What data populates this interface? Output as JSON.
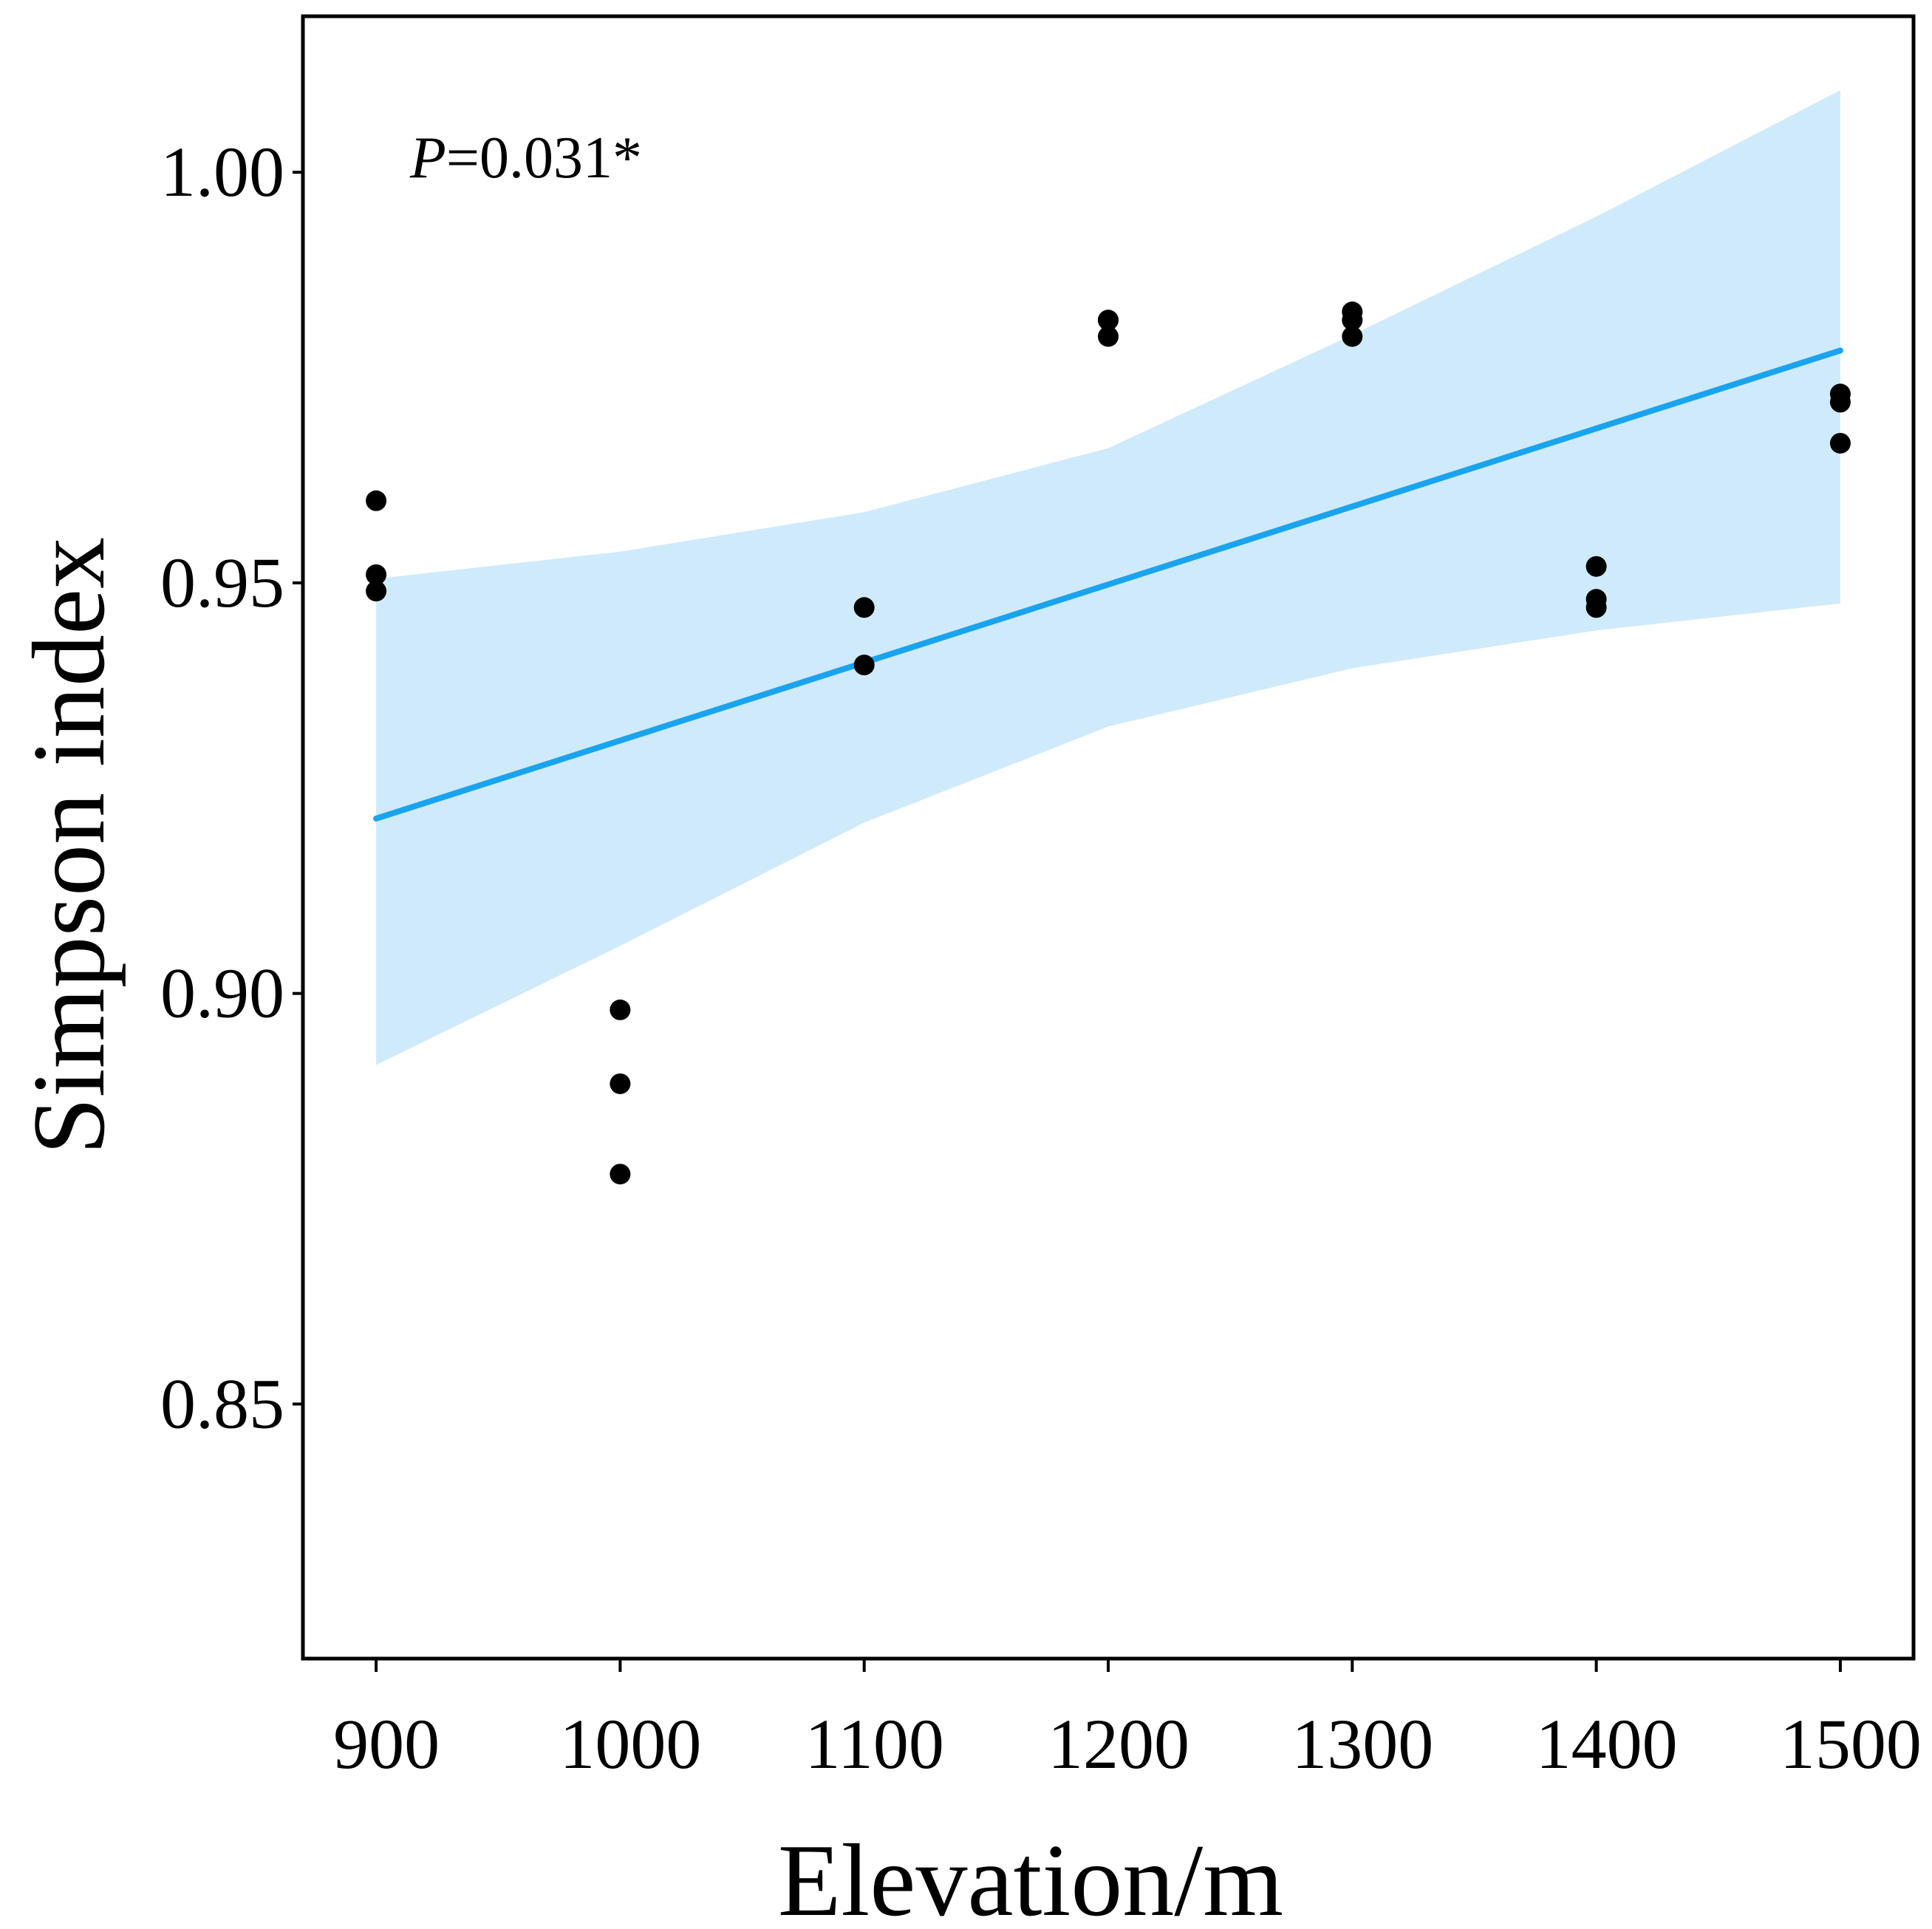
{
  "chart_data": {
    "type": "scatter",
    "title": "",
    "xlabel": "Elevation/m",
    "ylabel": "Simpson index",
    "xlim": [
      870,
      1530
    ],
    "ylim": [
      0.819,
      1.019
    ],
    "x_ticks": [
      900,
      1000,
      1100,
      1200,
      1300,
      1400,
      1500
    ],
    "x_tick_labels": [
      "900",
      "1000",
      "1100",
      "1200",
      "1300",
      "1400",
      "1500"
    ],
    "y_ticks": [
      0.85,
      0.9,
      0.95,
      1.0
    ],
    "y_tick_labels": [
      "0.85",
      "0.90",
      "0.95",
      "1.00"
    ],
    "grid": false,
    "annotation": {
      "italic": "P",
      "text": "=0.031*"
    },
    "colors": {
      "points": "#000000",
      "fit_line": "#1aa3ee",
      "confidence_band": "#cfeafb"
    },
    "points": [
      {
        "x": 900,
        "y": 0.96
      },
      {
        "x": 900,
        "y": 0.951
      },
      {
        "x": 900,
        "y": 0.949
      },
      {
        "x": 1000,
        "y": 0.898
      },
      {
        "x": 1000,
        "y": 0.889
      },
      {
        "x": 1000,
        "y": 0.878
      },
      {
        "x": 1100,
        "y": 0.947
      },
      {
        "x": 1100,
        "y": 0.94
      },
      {
        "x": 1200,
        "y": 0.982
      },
      {
        "x": 1200,
        "y": 0.982
      },
      {
        "x": 1200,
        "y": 0.98
      },
      {
        "x": 1300,
        "y": 0.983
      },
      {
        "x": 1300,
        "y": 0.982
      },
      {
        "x": 1300,
        "y": 0.98
      },
      {
        "x": 1400,
        "y": 0.952
      },
      {
        "x": 1400,
        "y": 0.948
      },
      {
        "x": 1400,
        "y": 0.947
      },
      {
        "x": 1500,
        "y": 0.973
      },
      {
        "x": 1500,
        "y": 0.972
      },
      {
        "x": 1500,
        "y": 0.967
      }
    ],
    "fit_line": {
      "x": [
        900,
        1500
      ],
      "y": [
        0.9213,
        0.9783
      ]
    },
    "confidence_band": {
      "x": [
        900,
        1000,
        1100,
        1200,
        1300,
        1400,
        1500
      ],
      "lower": [
        0.8913,
        0.9058,
        0.9208,
        0.9325,
        0.9396,
        0.9442,
        0.9475
      ],
      "upper": [
        0.9505,
        0.9538,
        0.9586,
        0.9664,
        0.9802,
        0.9946,
        1.01
      ]
    }
  }
}
